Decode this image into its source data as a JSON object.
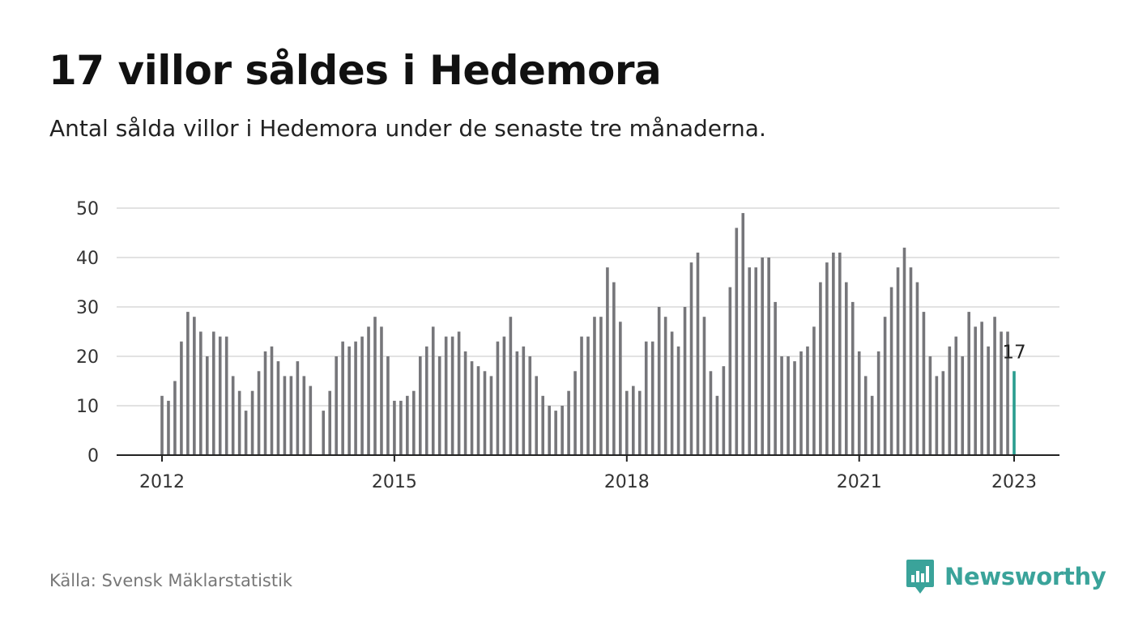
{
  "header": {
    "title": "17 villor såldes i Hedemora",
    "subtitle": "Antal sålda villor i Hedemora under de senaste tre månaderna."
  },
  "footer": {
    "source": "Källa: Svensk Mäklarstatistik",
    "brand": "Newsworthy",
    "brand_icon": "bar-chart-speech-bubble-icon"
  },
  "colors": {
    "bar": "#76767a",
    "highlight": "#2a9d8f",
    "grid": "#d9d9d9",
    "axis": "#222222",
    "brand": "#3aa39a"
  },
  "chart_data": {
    "type": "bar",
    "title": "17 villor såldes i Hedemora",
    "subtitle": "Antal sålda villor i Hedemora under de senaste tre månaderna.",
    "xlabel": "",
    "ylabel": "",
    "ylim": [
      0,
      50
    ],
    "yticks": [
      0,
      10,
      20,
      30,
      40,
      50
    ],
    "xticks": [
      "2012",
      "2015",
      "2018",
      "2021",
      "2023"
    ],
    "grid": true,
    "x_start": "2012-01",
    "x_end": "2023-01",
    "highlight_last": true,
    "highlight_label": "17",
    "series": [
      {
        "values": [
          12,
          11,
          15,
          23,
          29,
          28,
          25,
          20,
          25,
          24,
          24,
          16,
          13,
          9,
          13,
          17,
          21,
          22,
          19,
          16,
          16,
          19,
          16,
          14,
          null,
          9,
          13,
          20,
          23,
          22,
          23,
          24,
          26,
          28,
          26,
          20,
          11,
          11,
          12,
          13,
          20,
          22,
          26,
          20,
          24,
          24,
          25,
          21,
          19,
          18,
          17,
          16,
          23,
          24,
          28,
          21,
          22,
          20,
          16,
          12,
          10,
          9,
          10,
          13,
          17,
          24,
          24,
          28,
          28,
          38,
          35,
          27,
          13,
          14,
          13,
          23,
          23,
          30,
          28,
          25,
          22,
          30,
          39,
          41,
          28,
          17,
          12,
          18,
          34,
          46,
          49,
          38,
          38,
          40,
          40,
          31,
          20,
          20,
          19,
          21,
          22,
          26,
          35,
          39,
          41,
          41,
          35,
          31,
          21,
          16,
          12,
          21,
          28,
          34,
          38,
          42,
          38,
          35,
          29,
          20,
          16,
          17,
          22,
          24,
          20,
          29,
          26,
          27,
          22,
          28,
          25,
          25,
          17
        ]
      }
    ]
  }
}
